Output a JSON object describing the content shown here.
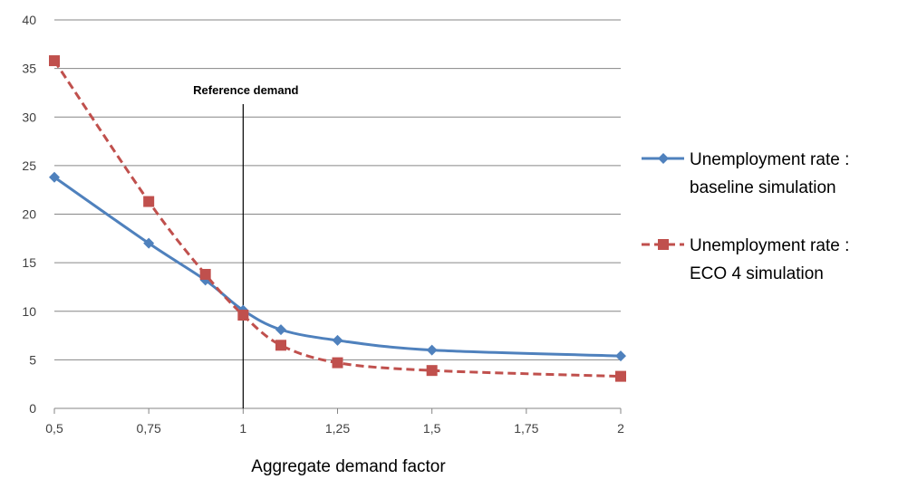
{
  "chart_data": {
    "type": "line",
    "xlabel": "Aggregate demand factor",
    "ylabel": "",
    "xlim": [
      0.5,
      2
    ],
    "ylim": [
      0,
      40
    ],
    "x_ticks": [
      "0,5",
      "0,75",
      "1",
      "1,25",
      "1,5",
      "1,75",
      "2"
    ],
    "x_tick_values": [
      0.5,
      0.75,
      1,
      1.25,
      1.5,
      1.75,
      2
    ],
    "y_ticks": [
      "0",
      "5",
      "10",
      "15",
      "20",
      "25",
      "30",
      "35",
      "40"
    ],
    "y_tick_values": [
      0,
      5,
      10,
      15,
      20,
      25,
      30,
      35,
      40
    ],
    "grid": true,
    "legend_position": "right",
    "annotation": {
      "text": "Reference demand",
      "x": 1
    },
    "series": [
      {
        "name": "Unemployment rate : baseline simulation",
        "name_lines": [
          "Unemployment rate :",
          "baseline simulation"
        ],
        "color": "#4F81BD",
        "marker": "diamond",
        "style": "solid",
        "x": [
          0.5,
          0.75,
          0.9,
          1,
          1.1,
          1.25,
          1.5,
          2
        ],
        "y": [
          23.8,
          17.0,
          13.2,
          10.1,
          8.1,
          7.0,
          6.0,
          5.4
        ]
      },
      {
        "name": "Unemployment rate : ECO 4 simulation",
        "name_lines": [
          "Unemployment rate :",
          "ECO 4 simulation"
        ],
        "color": "#C0504D",
        "marker": "square",
        "style": "dashed",
        "x": [
          0.5,
          0.75,
          0.9,
          1,
          1.1,
          1.25,
          1.5,
          2
        ],
        "y": [
          35.8,
          21.3,
          13.8,
          9.6,
          6.5,
          4.7,
          3.9,
          3.3
        ]
      }
    ]
  }
}
